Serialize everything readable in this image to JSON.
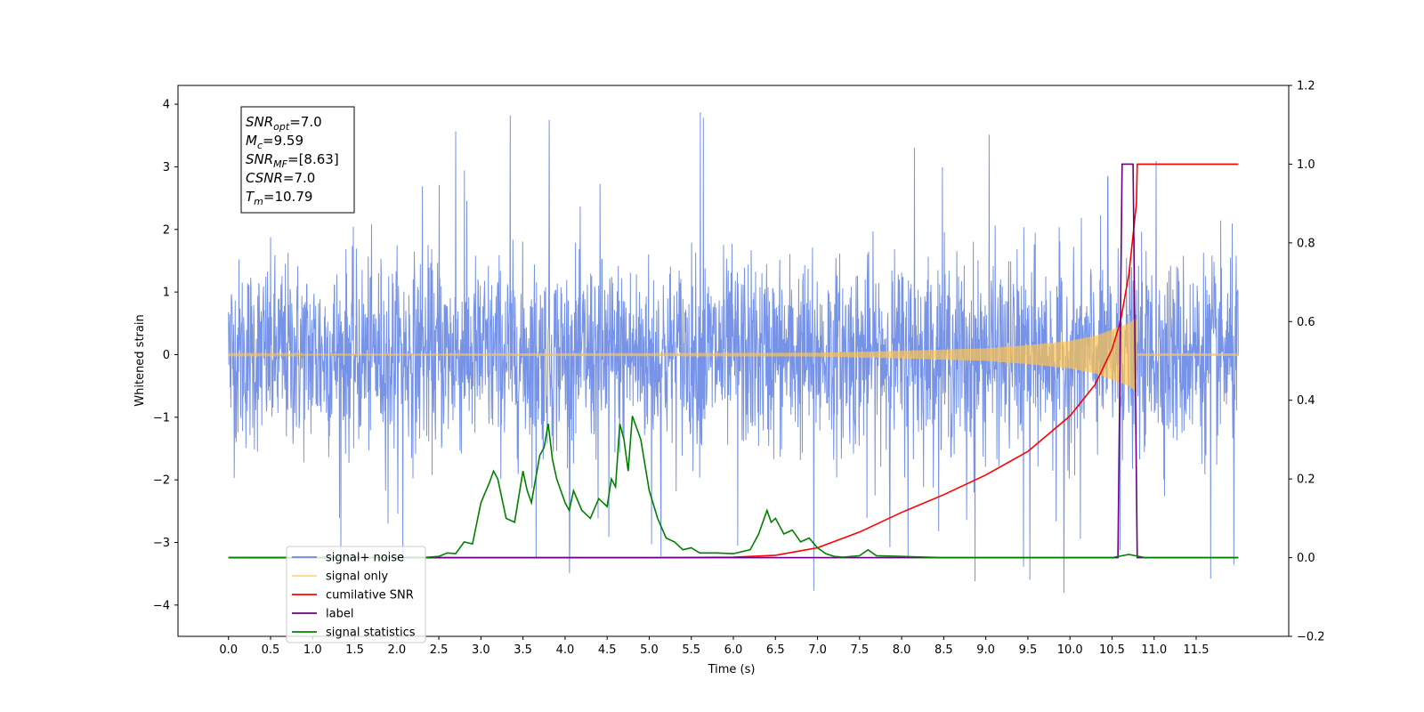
{
  "chart_data": {
    "type": "line",
    "xlabel": "Time (s)",
    "ylabel": "Whitened strain",
    "xlim": [
      -0.6,
      12.6
    ],
    "ylim": [
      -4.5,
      4.3
    ],
    "y2lim": [
      -0.2,
      1.2
    ],
    "x_ticks": [
      "0.0",
      "0.5",
      "1.0",
      "1.5",
      "2.0",
      "2.5",
      "3.0",
      "3.5",
      "4.0",
      "4.5",
      "5.0",
      "5.5",
      "6.0",
      "6.5",
      "7.0",
      "7.5",
      "8.0",
      "8.5",
      "9.0",
      "9.5",
      "10.0",
      "10.5",
      "11.0",
      "11.5"
    ],
    "y_ticks": [
      "4",
      "3",
      "2",
      "1",
      "0",
      "−1",
      "−2",
      "−3",
      "−4"
    ],
    "y2_ticks": [
      "1.2",
      "1.0",
      "0.8",
      "0.6",
      "0.4",
      "0.2",
      "0.0",
      "−0.2"
    ],
    "annotation": [
      {
        "base": "SNR",
        "sub": "opt",
        "value": "=7.0"
      },
      {
        "base": "M",
        "sub": "c",
        "value": "=9.59"
      },
      {
        "base": "SNR",
        "sub": "MF",
        "value": "=[8.63]"
      },
      {
        "base": "CSNR",
        "sub": "",
        "value": "=7.0"
      },
      {
        "base": "T",
        "sub": "m",
        "value": "=10.79"
      }
    ],
    "legend_position": "lower-left",
    "series": [
      {
        "name": "signal+ noise",
        "color": "#6a8ae6",
        "axis": "left",
        "x_range": [
          0.0,
          12.0
        ],
        "amplitude_band": [
          -1.6,
          1.9
        ],
        "peak_range": [
          -4.1,
          3.95
        ]
      },
      {
        "name": "signal only",
        "color": "#ffc34d",
        "axis": "left",
        "x_range": [
          0.0,
          12.0
        ],
        "envelope": [
          [
            0.0,
            0.01
          ],
          [
            7.0,
            0.03
          ],
          [
            8.0,
            0.06
          ],
          [
            9.0,
            0.1
          ],
          [
            9.5,
            0.15
          ],
          [
            10.0,
            0.22
          ],
          [
            10.3,
            0.3
          ],
          [
            10.5,
            0.4
          ],
          [
            10.7,
            0.5
          ],
          [
            10.79,
            0.6
          ],
          [
            10.8,
            0.02
          ],
          [
            12.0,
            0.02
          ]
        ]
      },
      {
        "name": "cumilative SNR",
        "color": "#ff0000",
        "axis": "right",
        "x": [
          0.0,
          5.0,
          6.0,
          6.5,
          7.0,
          7.5,
          8.0,
          8.5,
          9.0,
          9.5,
          10.0,
          10.3,
          10.5,
          10.6,
          10.7,
          10.79,
          10.8,
          12.0
        ],
        "y": [
          0.0,
          0.0,
          0.001,
          0.006,
          0.025,
          0.065,
          0.115,
          0.16,
          0.21,
          0.27,
          0.36,
          0.44,
          0.53,
          0.6,
          0.72,
          0.9,
          1.0,
          1.0
        ]
      },
      {
        "name": "label",
        "color": "#6a0080",
        "axis": "right",
        "x": [
          0.0,
          10.57,
          10.62,
          10.75,
          10.8,
          12.0
        ],
        "y": [
          0.0,
          0.0,
          1.0,
          1.0,
          0.0,
          0.0
        ]
      },
      {
        "name": "signal statistics",
        "color": "#008000",
        "axis": "right",
        "x": [
          0.0,
          2.3,
          2.5,
          2.6,
          2.7,
          2.8,
          2.9,
          3.0,
          3.1,
          3.15,
          3.2,
          3.3,
          3.4,
          3.5,
          3.55,
          3.6,
          3.7,
          3.75,
          3.8,
          3.85,
          3.9,
          4.0,
          4.05,
          4.1,
          4.2,
          4.3,
          4.4,
          4.5,
          4.55,
          4.6,
          4.65,
          4.7,
          4.75,
          4.8,
          4.9,
          5.0,
          5.1,
          5.2,
          5.3,
          5.4,
          5.5,
          5.6,
          5.8,
          6.0,
          6.2,
          6.3,
          6.4,
          6.45,
          6.5,
          6.6,
          6.7,
          6.8,
          6.9,
          7.0,
          7.1,
          7.2,
          7.3,
          7.5,
          7.6,
          7.7,
          8.0,
          8.5,
          10.5,
          10.7,
          10.9,
          12.0
        ],
        "y": [
          0.0,
          0.0,
          0.003,
          0.012,
          0.01,
          0.04,
          0.035,
          0.14,
          0.19,
          0.22,
          0.2,
          0.1,
          0.09,
          0.22,
          0.17,
          0.14,
          0.26,
          0.28,
          0.34,
          0.25,
          0.2,
          0.14,
          0.12,
          0.17,
          0.12,
          0.1,
          0.15,
          0.13,
          0.2,
          0.18,
          0.34,
          0.3,
          0.22,
          0.36,
          0.3,
          0.17,
          0.1,
          0.05,
          0.04,
          0.02,
          0.025,
          0.012,
          0.012,
          0.01,
          0.02,
          0.06,
          0.12,
          0.09,
          0.1,
          0.06,
          0.07,
          0.04,
          0.05,
          0.025,
          0.01,
          0.003,
          0.001,
          0.005,
          0.02,
          0.005,
          0.003,
          0.0,
          0.0,
          0.008,
          0.0,
          0.0
        ]
      }
    ]
  }
}
